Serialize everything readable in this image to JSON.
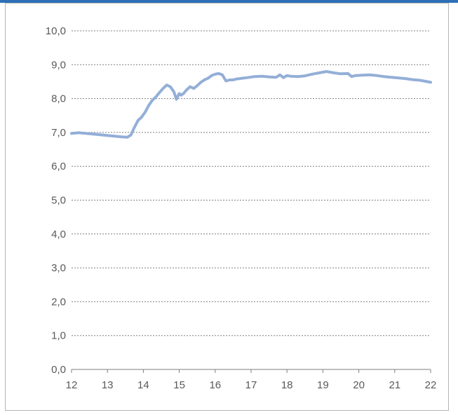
{
  "colors": {
    "line": "#93afd7",
    "grid": "#7f7f7f",
    "axis": "#7f7f7f",
    "header_bar": "#2e6fb7"
  },
  "chart_data": {
    "type": "line",
    "title": "",
    "xlabel": "",
    "ylabel": "",
    "xlim": [
      12,
      22
    ],
    "ylim": [
      0,
      10
    ],
    "grid": true,
    "legend": "none",
    "x_ticks": [
      "12",
      "13",
      "14",
      "15",
      "16",
      "17",
      "18",
      "19",
      "20",
      "21",
      "22"
    ],
    "y_ticks": [
      "0,0",
      "1,0",
      "2,0",
      "3,0",
      "4,0",
      "5,0",
      "6,0",
      "7,0",
      "8,0",
      "9,0",
      "10,0"
    ],
    "series": [
      {
        "x": [
          12.0,
          12.2,
          12.4,
          12.6,
          12.8,
          13.0,
          13.2,
          13.4,
          13.55,
          13.65,
          13.75,
          13.85,
          13.95,
          14.05,
          14.15,
          14.25,
          14.35,
          14.45,
          14.55,
          14.65,
          14.75,
          14.85,
          14.92,
          15.0,
          15.05,
          15.12,
          15.2,
          15.3,
          15.4,
          15.5,
          15.6,
          15.7,
          15.8,
          15.9,
          16.0,
          16.1,
          16.2,
          16.3,
          16.4,
          16.5,
          16.6,
          16.75,
          16.9,
          17.1,
          17.3,
          17.5,
          17.7,
          17.8,
          17.9,
          18.0,
          18.1,
          18.3,
          18.5,
          18.7,
          18.9,
          19.1,
          19.3,
          19.5,
          19.7,
          19.8,
          19.9,
          20.1,
          20.3,
          20.5,
          20.7,
          20.9,
          21.1,
          21.3,
          21.5,
          21.7,
          21.9,
          22.0
        ],
        "y": [
          6.97,
          6.99,
          6.97,
          6.95,
          6.93,
          6.91,
          6.89,
          6.87,
          6.86,
          6.92,
          7.15,
          7.35,
          7.45,
          7.6,
          7.8,
          7.95,
          8.05,
          8.18,
          8.3,
          8.4,
          8.35,
          8.2,
          7.98,
          8.15,
          8.1,
          8.15,
          8.25,
          8.35,
          8.3,
          8.38,
          8.48,
          8.55,
          8.6,
          8.68,
          8.72,
          8.74,
          8.7,
          8.52,
          8.55,
          8.55,
          8.58,
          8.6,
          8.62,
          8.65,
          8.66,
          8.64,
          8.63,
          8.7,
          8.62,
          8.68,
          8.66,
          8.65,
          8.67,
          8.72,
          8.76,
          8.8,
          8.76,
          8.73,
          8.74,
          8.65,
          8.68,
          8.69,
          8.7,
          8.68,
          8.65,
          8.63,
          8.61,
          8.59,
          8.56,
          8.54,
          8.5,
          8.48
        ]
      }
    ]
  }
}
